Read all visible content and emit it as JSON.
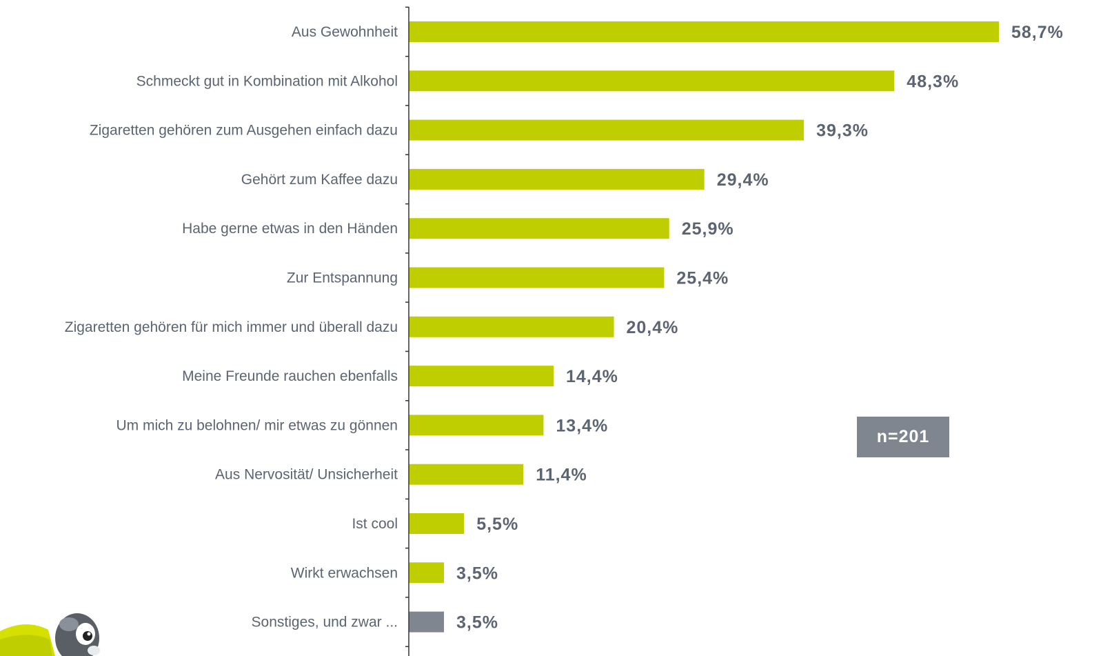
{
  "chart_data": {
    "type": "bar",
    "orientation": "horizontal",
    "categories": [
      "Aus Gewohnheit",
      "Schmeckt gut in Kombination mit Alkohol",
      "Zigaretten gehören zum Ausgehen einfach dazu",
      "Gehört zum Kaffee dazu",
      "Habe gerne etwas in den Händen",
      "Zur Entspannung",
      "Zigaretten gehören für mich immer und überall dazu",
      "Meine Freunde rauchen ebenfalls",
      "Um mich zu belohnen/ mir etwas zu gönnen",
      "Aus Nervosität/ Unsicherheit",
      "Ist cool",
      "Wirkt erwachsen",
      "Sonstiges, und zwar ..."
    ],
    "values": [
      58.7,
      48.3,
      39.3,
      29.4,
      25.9,
      25.4,
      20.4,
      14.4,
      13.4,
      11.4,
      5.5,
      3.5,
      3.5
    ],
    "value_labels": [
      "58,7%",
      "48,3%",
      "39,3%",
      "29,4%",
      "25,9%",
      "25,4%",
      "20,4%",
      "14,4%",
      "13,4%",
      "11,4%",
      "5,5%",
      "3,5%",
      "3,5%"
    ],
    "bar_colors": [
      "#bfce00",
      "#bfce00",
      "#bfce00",
      "#bfce00",
      "#bfce00",
      "#bfce00",
      "#bfce00",
      "#bfce00",
      "#bfce00",
      "#bfce00",
      "#bfce00",
      "#bfce00",
      "#7f868f"
    ],
    "xlim": [
      0,
      60
    ],
    "grid": false,
    "legend": "none"
  },
  "sample_note": "n=201",
  "colors": {
    "bar_primary": "#bfce00",
    "bar_other": "#7f868f",
    "text": "#5b6470",
    "axis": "#333333"
  },
  "icons": {
    "mascot": "cartoon-mascot-icon"
  }
}
